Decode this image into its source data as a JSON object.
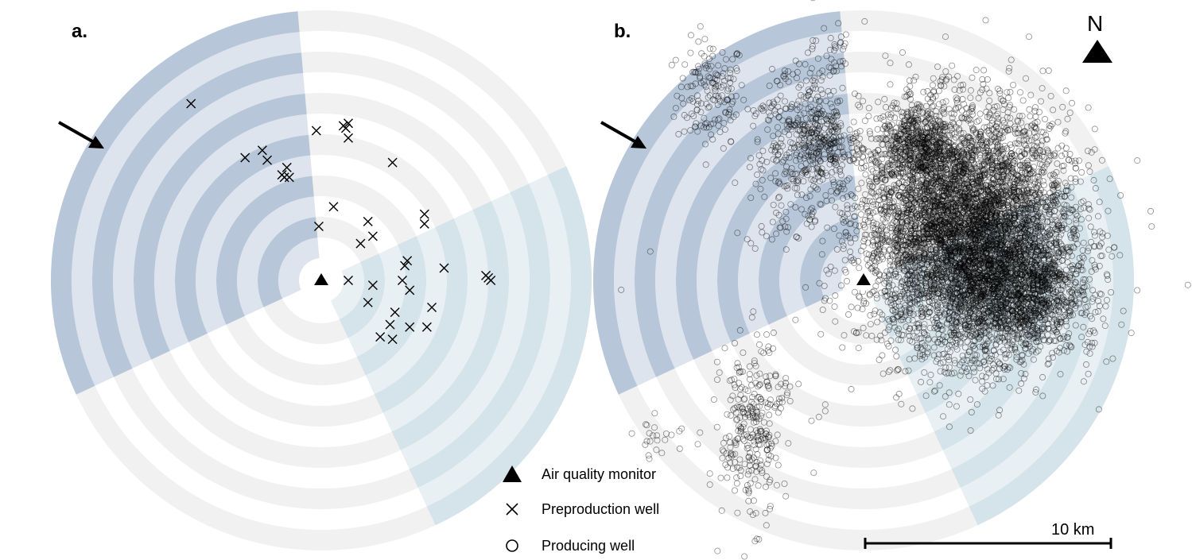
{
  "panels": {
    "a": {
      "label": "a."
    },
    "b": {
      "label": "b."
    }
  },
  "north_label": "N",
  "scale_bar": {
    "label": "10 km"
  },
  "legend": {
    "monitor": "Air quality monitor",
    "preproduction": "Preproduction well",
    "producing": "Producing well"
  },
  "colors": {
    "sector_nw_dark": "#b7c6d9",
    "sector_nw_light": "#dde4ee",
    "sector_se_dark": "#d5e3ea",
    "sector_se_light": "#e8f0f4",
    "sector_other_ring": "#f1f1f1",
    "marker": "#000000"
  },
  "rings": 6,
  "sectors_deg": {
    "nw_start": 245,
    "nw_end": 355,
    "se_start": 65,
    "se_end": 155
  },
  "preproduction_wells_km": [
    [
      -5.3,
      7.2
    ],
    [
      -3.1,
      5.0
    ],
    [
      -2.4,
      5.3
    ],
    [
      -2.2,
      4.9
    ],
    [
      -1.4,
      4.6
    ],
    [
      -1.6,
      4.3
    ],
    [
      -1.3,
      4.2
    ],
    [
      -1.5,
      4.2
    ],
    [
      -0.2,
      6.1
    ],
    [
      0.9,
      6.3
    ],
    [
      1.1,
      6.4
    ],
    [
      1.0,
      6.2
    ],
    [
      1.1,
      5.8
    ],
    [
      2.9,
      4.8
    ],
    [
      0.5,
      3.0
    ],
    [
      -0.1,
      2.2
    ],
    [
      1.9,
      2.4
    ],
    [
      2.1,
      1.8
    ],
    [
      1.6,
      1.5
    ],
    [
      4.2,
      2.7
    ],
    [
      4.2,
      2.3
    ],
    [
      3.5,
      0.8
    ],
    [
      3.4,
      0.6
    ],
    [
      5.0,
      0.5
    ],
    [
      1.1,
      0.0
    ],
    [
      2.1,
      -0.2
    ],
    [
      3.3,
      0.0
    ],
    [
      3.6,
      -0.4
    ],
    [
      1.9,
      -0.9
    ],
    [
      4.5,
      -1.1
    ],
    [
      3.0,
      -1.3
    ],
    [
      2.8,
      -1.8
    ],
    [
      3.6,
      -1.9
    ],
    [
      4.3,
      -1.9
    ],
    [
      2.4,
      -2.3
    ],
    [
      2.9,
      -2.4
    ],
    [
      6.7,
      0.2
    ],
    [
      6.8,
      0.1
    ],
    [
      6.9,
      0.0
    ]
  ],
  "producing_clusters_km": [
    {
      "cx": -6.2,
      "cy": 7.6,
      "sx": 0.7,
      "sy": 1.1,
      "n": 160
    },
    {
      "cx": -3.2,
      "cy": 8.5,
      "sx": 0.3,
      "sy": 0.3,
      "n": 12
    },
    {
      "cx": -3.8,
      "cy": 6.8,
      "sx": 0.5,
      "sy": 0.5,
      "n": 30
    },
    {
      "cx": -2.8,
      "cy": 5.4,
      "sx": 0.9,
      "sy": 1.1,
      "n": 140
    },
    {
      "cx": -1.8,
      "cy": 6.6,
      "sx": 0.6,
      "sy": 1.5,
      "n": 140
    },
    {
      "cx": -1.6,
      "cy": 5.4,
      "sx": 0.9,
      "sy": 0.8,
      "n": 200
    },
    {
      "cx": -1.2,
      "cy": 9.4,
      "sx": 0.3,
      "sy": 0.6,
      "n": 20
    },
    {
      "cx": -3.4,
      "cy": 3.0,
      "sx": 0.7,
      "sy": 0.9,
      "n": 40
    },
    {
      "cx": -2.0,
      "cy": 2.5,
      "sx": 0.3,
      "sy": 0.3,
      "n": 6
    },
    {
      "cx": 4.2,
      "cy": 2.0,
      "sx": 2.1,
      "sy": 2.4,
      "n": 6000
    },
    {
      "cx": 6.2,
      "cy": -0.5,
      "sx": 1.3,
      "sy": 1.3,
      "n": 1200
    },
    {
      "cx": 2.2,
      "cy": 5.5,
      "sx": 0.8,
      "sy": 0.8,
      "n": 500
    },
    {
      "cx": 7.4,
      "cy": 0.1,
      "sx": 0.3,
      "sy": 0.3,
      "n": 40
    },
    {
      "cx": 9.2,
      "cy": -2.6,
      "sx": 0.2,
      "sy": 0.2,
      "n": 8
    },
    {
      "cx": -4.6,
      "cy": -6.2,
      "sx": 0.6,
      "sy": 1.8,
      "n": 280
    },
    {
      "cx": -8.2,
      "cy": -6.4,
      "sx": 0.6,
      "sy": 0.4,
      "n": 24
    },
    {
      "cx": -3.3,
      "cy": -4.7,
      "sx": 0.3,
      "sy": 0.4,
      "n": 16
    },
    {
      "cx": -1.7,
      "cy": -5.5,
      "sx": 0.2,
      "sy": 0.2,
      "n": 4
    },
    {
      "cx": -3.8,
      "cy": -2.8,
      "sx": 0.2,
      "sy": 0.3,
      "n": 4
    },
    {
      "cx": 6.5,
      "cy": 6.0,
      "sx": 0.1,
      "sy": 0.1,
      "n": 2
    },
    {
      "cx": -8.8,
      "cy": 1.2,
      "sx": 0.1,
      "sy": 0.1,
      "n": 1
    },
    {
      "cx": -10.0,
      "cy": -0.4,
      "sx": 0.1,
      "sy": 0.1,
      "n": 1
    },
    {
      "cx": 3.8,
      "cy": -2.2,
      "sx": 0.2,
      "sy": 0.2,
      "n": 3
    }
  ]
}
